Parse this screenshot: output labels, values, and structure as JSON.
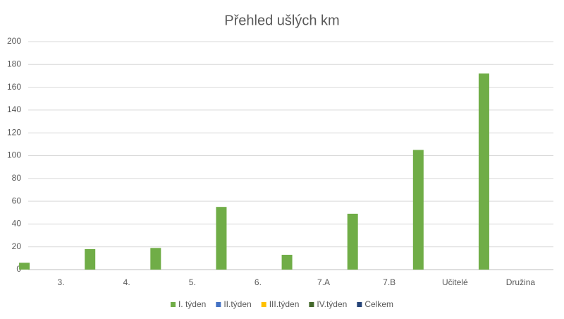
{
  "chart_data": {
    "type": "bar",
    "title": "Přehled ušlých km",
    "categories": [
      "3.",
      "4.",
      "5.",
      "6.",
      "7.A",
      "7.B",
      "Učitelé",
      "Družina"
    ],
    "series": [
      {
        "name": "I. týden",
        "color": "#70ad47",
        "values": [
          6,
          18,
          19,
          55,
          13,
          49,
          105,
          172
        ]
      },
      {
        "name": "II.týden",
        "color": "#4472c4",
        "values": [
          null,
          null,
          null,
          null,
          null,
          null,
          null,
          null
        ]
      },
      {
        "name": "III.týden",
        "color": "#ffc000",
        "values": [
          null,
          null,
          null,
          null,
          null,
          null,
          null,
          null
        ]
      },
      {
        "name": "IV.týden",
        "color": "#43682b",
        "values": [
          null,
          null,
          null,
          null,
          null,
          null,
          null,
          null
        ]
      },
      {
        "name": "Celkem",
        "color": "#264478",
        "values": [
          null,
          null,
          null,
          null,
          null,
          null,
          null,
          null
        ]
      }
    ],
    "ylim": [
      0,
      200
    ],
    "yticks": [
      0,
      20,
      40,
      60,
      80,
      100,
      120,
      140,
      160,
      180,
      200
    ],
    "grid": true,
    "legend": "bottom"
  }
}
